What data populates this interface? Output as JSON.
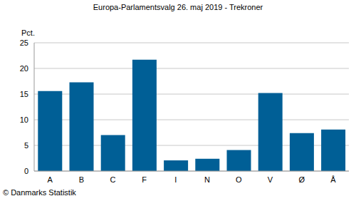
{
  "chart_data": {
    "type": "bar",
    "title": "Europa-Parlamentsvalg 26. maj 2019 - Trekroner",
    "y_label": "Pct.",
    "annotation": "© Danmarks Statistik",
    "categories": [
      "A",
      "B",
      "C",
      "F",
      "I",
      "N",
      "O",
      "V",
      "Ø",
      "Å"
    ],
    "values": [
      15.6,
      17.3,
      7.0,
      21.7,
      2.1,
      2.4,
      4.1,
      15.2,
      7.4,
      8.1
    ],
    "color": "#005f96",
    "ylim": [
      0,
      25
    ],
    "yticks": [
      0,
      5,
      10,
      15,
      20,
      25
    ],
    "grid": true
  }
}
